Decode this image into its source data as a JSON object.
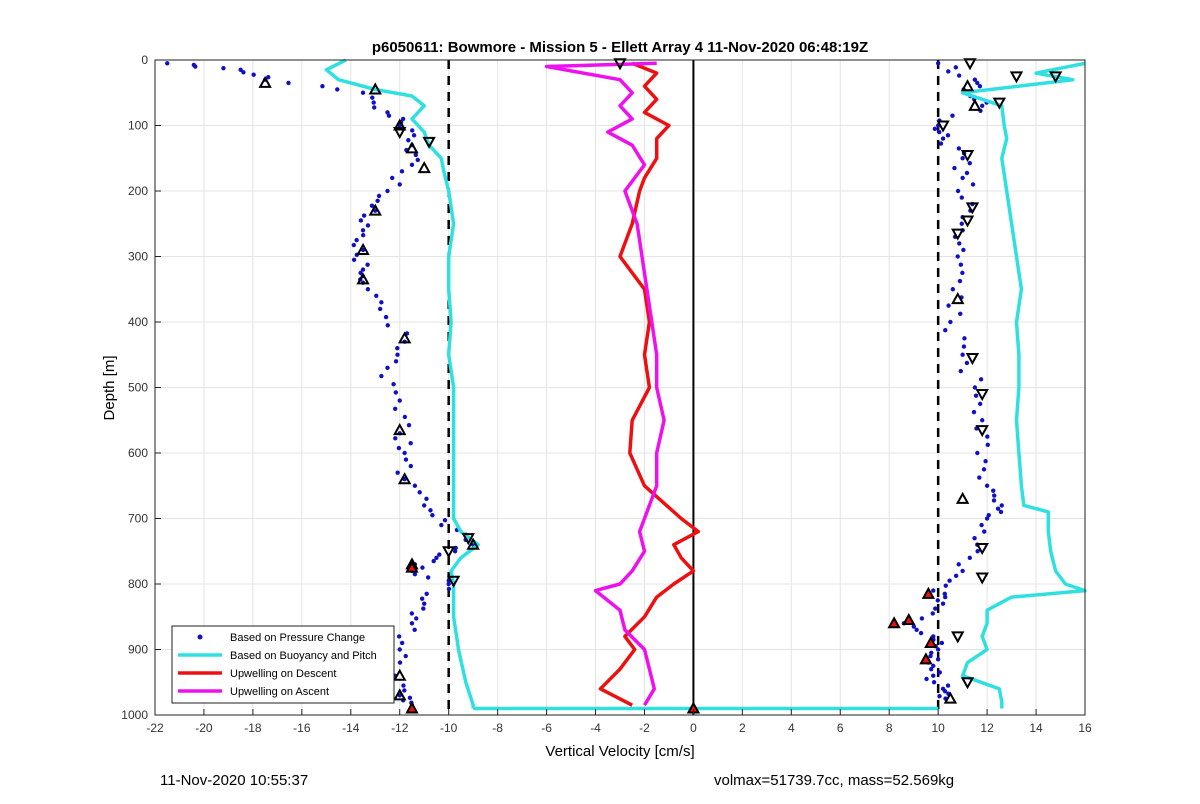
{
  "chart_data": {
    "type": "scatter",
    "title": "p6050611: Bowmore - Mission 5 - Ellett Array 4 11-Nov-2020 06:48:19Z",
    "xlabel": "Vertical Velocity [cm/s]",
    "ylabel": "Depth [m]",
    "xlim": [
      -22,
      16
    ],
    "ylim": [
      0,
      1000
    ],
    "y_reversed": true,
    "grid": true,
    "x_ticks": [
      -22,
      -20,
      -18,
      -16,
      -14,
      -12,
      -10,
      -8,
      -6,
      -4,
      -2,
      0,
      2,
      4,
      6,
      8,
      10,
      12,
      14,
      16
    ],
    "y_ticks": [
      0,
      100,
      200,
      300,
      400,
      500,
      600,
      700,
      800,
      900,
      1000
    ],
    "reference_lines": [
      {
        "x": -10,
        "style": "dashed",
        "color": "#000000"
      },
      {
        "x": 10,
        "style": "dashed",
        "color": "#000000"
      },
      {
        "x": 0,
        "style": "solid",
        "color": "#000000"
      }
    ],
    "legend_placement": "bottom-left",
    "series": [
      {
        "name": "Based on Pressure Change",
        "kind": "points",
        "color": "#1010c8",
        "profiles": [
          {
            "depth": [
              5,
              15,
              30,
              50,
              80,
              100,
              130,
              160,
              200,
              230,
              260,
              290,
              320,
              340,
              380,
              430,
              470,
              520,
              570,
              600,
              640,
              680,
              710,
              740,
              760,
              780,
              800,
              830,
              860,
              900,
              940,
              970,
              985
            ],
            "value": [
              -21.5,
              -18.5,
              -17.5,
              -13.5,
              -12.5,
              -12.0,
              -11.5,
              -11.5,
              -12.5,
              -13.0,
              -13.5,
              -13.5,
              -13.5,
              -13.5,
              -12.8,
              -11.8,
              -12.5,
              -12.0,
              -12.0,
              -11.8,
              -11.8,
              -11.0,
              -10.3,
              -9.0,
              -10.5,
              -11.5,
              -10.0,
              -11.0,
              -11.5,
              -12.0,
              -12.2,
              -12.0,
              -11.5
            ]
          },
          {
            "depth": [
              5,
              30,
              50,
              70,
              100,
              120,
              150,
              180,
              220,
              260,
              300,
              350,
              400,
              450,
              500,
              550,
              600,
              650,
              680,
              700,
              740,
              780,
              810,
              830,
              860,
              880,
              900,
              920,
              940,
              960,
              975
            ],
            "value": [
              10.0,
              11.5,
              11.2,
              11.8,
              10.0,
              10.2,
              11.0,
              11.0,
              11.4,
              11.0,
              10.8,
              10.6,
              10.5,
              11.0,
              11.5,
              11.8,
              11.6,
              12.0,
              12.6,
              12.0,
              11.6,
              11.0,
              9.8,
              10.2,
              8.6,
              9.8,
              10.0,
              9.6,
              9.8,
              10.2,
              10.3
            ]
          }
        ]
      },
      {
        "name": "Based on Buoyancy and Pitch",
        "kind": "line",
        "color": "#30e0e0",
        "profiles": [
          {
            "depth": [
              0,
              15,
              30,
              45,
              55,
              70,
              90,
              110,
              130,
              150,
              170,
              200,
              250,
              300,
              350,
              400,
              450,
              500,
              550,
              600,
              650,
              700,
              720,
              740,
              760,
              780,
              800,
              850,
              900,
              950,
              985,
              990
            ],
            "value": [
              -14.2,
              -15.0,
              -14.5,
              -13.0,
              -11.5,
              -11.0,
              -11.5,
              -11.0,
              -10.8,
              -10.3,
              -10.2,
              -10.0,
              -9.8,
              -10.0,
              -10.0,
              -9.9,
              -10.0,
              -9.8,
              -9.8,
              -9.8,
              -9.8,
              -9.8,
              -9.5,
              -8.8,
              -9.5,
              -9.9,
              -9.8,
              -9.8,
              -9.6,
              -9.3,
              -9.0,
              -9.0
            ]
          },
          {
            "depth": [
              990,
              990,
              990,
              990
            ],
            "value": [
              -9.0,
              -2.0,
              4.0,
              10.0
            ]
          },
          {
            "depth": [
              990,
              980,
              960,
              940,
              920,
              900,
              880,
              860,
              840,
              820,
              810,
              800,
              780,
              750,
              720,
              690,
              680,
              650,
              600,
              550,
              500,
              450,
              400,
              350,
              300,
              250,
              200,
              150,
              120,
              100,
              70,
              50,
              30,
              20,
              5
            ],
            "value": [
              12.6,
              12.6,
              12.5,
              11.0,
              11.2,
              12.0,
              11.8,
              12.0,
              12.0,
              13.0,
              16.0,
              15.2,
              14.8,
              14.6,
              14.5,
              14.5,
              13.5,
              13.4,
              13.3,
              13.2,
              13.3,
              13.3,
              13.2,
              13.4,
              13.2,
              13.0,
              12.8,
              12.6,
              12.8,
              12.7,
              12.6,
              11.0,
              15.5,
              14.0,
              16.0
            ]
          }
        ]
      },
      {
        "name": "Upwelling on Descent",
        "kind": "line",
        "color": "#ee1010",
        "profiles": [
          {
            "depth": [
              5,
              20,
              40,
              60,
              80,
              100,
              120,
              150,
              180,
              200,
              250,
              300,
              350,
              400,
              450,
              500,
              550,
              600,
              650,
              700,
              720,
              740,
              760,
              780,
              800,
              820,
              850,
              880,
              900,
              930,
              960,
              985
            ],
            "value": [
              -2.5,
              -1.5,
              -2.0,
              -1.5,
              -2.0,
              -1.0,
              -1.5,
              -1.5,
              -2.0,
              -2.2,
              -2.5,
              -3.0,
              -2.0,
              -1.8,
              -2.0,
              -1.8,
              -2.5,
              -2.6,
              -2.0,
              -0.5,
              0.2,
              -0.8,
              -0.5,
              0.0,
              -0.8,
              -1.5,
              -2.0,
              -2.8,
              -2.4,
              -3.0,
              -3.8,
              -2.5
            ]
          }
        ]
      },
      {
        "name": "Upwelling on Ascent",
        "kind": "line",
        "color": "#ee10ee",
        "profiles": [
          {
            "depth": [
              985,
              960,
              930,
              900,
              870,
              840,
              810,
              800,
              780,
              750,
              720,
              700,
              650,
              600,
              550,
              500,
              450,
              400,
              350,
              300,
              250,
              200,
              160,
              130,
              110,
              90,
              70,
              50,
              30,
              10,
              5
            ],
            "value": [
              -2.0,
              -1.6,
              -1.8,
              -2.0,
              -2.8,
              -3.0,
              -4.0,
              -3.0,
              -2.5,
              -2.0,
              -2.2,
              -2.0,
              -1.5,
              -1.5,
              -1.2,
              -1.5,
              -1.5,
              -1.7,
              -1.9,
              -2.1,
              -2.3,
              -2.8,
              -2.0,
              -2.5,
              -3.5,
              -2.5,
              -3.0,
              -2.5,
              -3.0,
              -6.0,
              -1.5
            ]
          }
        ]
      }
    ],
    "marker_series": [
      {
        "style": "triangle-up",
        "color": "#000000",
        "fill": "none",
        "points": [
          [
            -17.5,
            35
          ],
          [
            -13.0,
            45
          ],
          [
            -12.0,
            100
          ],
          [
            -11.5,
            135
          ],
          [
            -11.0,
            165
          ],
          [
            -13.0,
            230
          ],
          [
            -13.5,
            290
          ],
          [
            -13.5,
            335
          ],
          [
            -11.8,
            425
          ],
          [
            -12.0,
            565
          ],
          [
            -11.8,
            640
          ],
          [
            -9.0,
            740
          ],
          [
            -11.5,
            770
          ],
          [
            -12.0,
            940
          ],
          [
            -12.0,
            970
          ],
          [
            11.2,
            40
          ],
          [
            11.5,
            70
          ],
          [
            10.8,
            365
          ],
          [
            11.0,
            670
          ],
          [
            10.5,
            975
          ]
        ]
      },
      {
        "style": "triangle-down",
        "color": "#000000",
        "fill": "none",
        "points": [
          [
            -12.0,
            110
          ],
          [
            -10.8,
            125
          ],
          [
            -9.2,
            730
          ],
          [
            -9.8,
            795
          ],
          [
            -10.0,
            750
          ],
          [
            11.3,
            5
          ],
          [
            13.2,
            25
          ],
          [
            14.8,
            25
          ],
          [
            12.5,
            65
          ],
          [
            10.2,
            100
          ],
          [
            11.2,
            145
          ],
          [
            11.4,
            225
          ],
          [
            11.2,
            245
          ],
          [
            10.8,
            265
          ],
          [
            11.4,
            455
          ],
          [
            11.8,
            510
          ],
          [
            11.8,
            565
          ],
          [
            11.8,
            745
          ],
          [
            11.8,
            790
          ],
          [
            10.8,
            880
          ],
          [
            11.2,
            950
          ],
          [
            -3.0,
            5
          ]
        ]
      },
      {
        "style": "triangle-up",
        "color": "#000000",
        "fill": "#ee1010",
        "points": [
          [
            -11.5,
            990
          ],
          [
            0.0,
            990
          ],
          [
            -11.5,
            775
          ],
          [
            8.2,
            860
          ],
          [
            8.8,
            855
          ],
          [
            9.6,
            815
          ],
          [
            9.7,
            890
          ],
          [
            9.5,
            915
          ]
        ]
      }
    ],
    "legend": [
      {
        "label": "Based on Pressure Change",
        "swatch": "dot",
        "color": "#1010c8"
      },
      {
        "label": "Based on Buoyancy and Pitch",
        "swatch": "line",
        "color": "#30e0e0"
      },
      {
        "label": "Upwelling on Descent",
        "swatch": "line",
        "color": "#ee1010"
      },
      {
        "label": "Upwelling on Ascent",
        "swatch": "line",
        "color": "#ee10ee"
      }
    ]
  },
  "footer": {
    "timestamp": "11-Nov-2020 10:55:37",
    "vehicle_info": "volmax=51739.7cc, mass=52.569kg"
  }
}
